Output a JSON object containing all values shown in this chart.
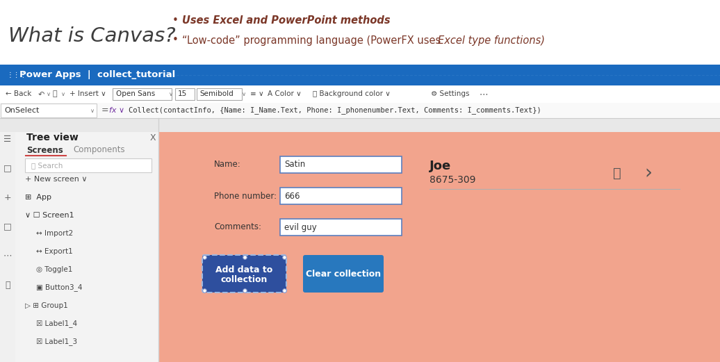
{
  "bg_color": "#ffffff",
  "title_text": "What is Canvas?",
  "title_color": "#3d3d3d",
  "title_fontsize": 20,
  "bullet1": "Uses Excel and PowerPoint methods",
  "bullet2_normal": "“Low-code” programming language (PowerFX uses ",
  "bullet2_italic": "Excel type functions)",
  "bullet_color": "#7B3728",
  "header_bg": "#1a6abf",
  "header_text": "Power Apps  |  collect_tutorial",
  "header_text_color": "#ffffff",
  "toolbar_bg": "#ffffff",
  "formula_bar_bg": "#f9f9f9",
  "formula_label": "OnSelect",
  "formula_text": "Collect(contactInfo, {Name: I_Name.Text, Phone: I_phonenumber.Text, Comments: I_comments.Text})",
  "sidebar_bg": "#f3f3f3",
  "sidebar_border": "#e0e0e0",
  "sidebar_title": "Tree view",
  "canvas_bg": "#F2A48D",
  "canvas_inner_bg": "#e8e8e8",
  "name_label": "Name:",
  "name_value": "Satin",
  "phone_label": "Phone number:",
  "phone_value": "666",
  "comments_label": "Comments:",
  "comments_value": "evil guy",
  "btn1_text_line1": "Add data to",
  "btn1_text_line2": "collection",
  "btn1_color": "#2E4F9E",
  "btn2_text": "Clear collection",
  "btn2_color": "#2878BE",
  "record_name": "Joe",
  "record_phone": "8675-309",
  "record_color": "#333333",
  "input_border": "#5B7FBF",
  "input_bg": "#ffffff",
  "tree_items": [
    {
      "indent": 0,
      "text": "+ New screen ∨",
      "color": "#444444"
    },
    {
      "indent": 0,
      "text": "⊞ App",
      "color": "#333333"
    },
    {
      "indent": 0,
      "text": "∨ ☐ Screen1",
      "color": "#333333"
    },
    {
      "indent": 1,
      "text": "←→ Import2",
      "color": "#555555"
    },
    {
      "indent": 1,
      "text": "→← Export1",
      "color": "#555555"
    },
    {
      "indent": 1,
      "text": "◎ Toggle1",
      "color": "#555555"
    },
    {
      "indent": 1,
      "text": "▣ Button3_4",
      "color": "#555555"
    },
    {
      "indent": 0,
      "text": "▷ ⊞ Group1",
      "color": "#555555"
    },
    {
      "indent": 1,
      "text": "☑ Label1_4",
      "color": "#555555"
    },
    {
      "indent": 1,
      "text": "☑ Label1_3",
      "color": "#555555"
    }
  ]
}
